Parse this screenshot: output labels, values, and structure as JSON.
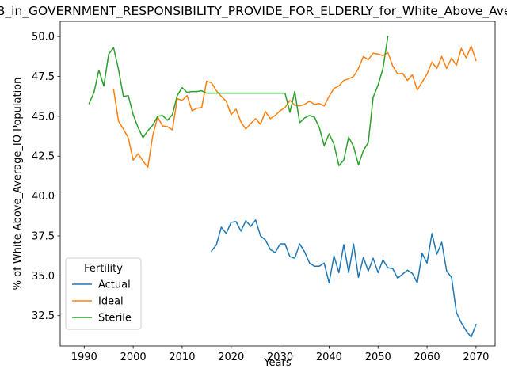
{
  "chart_data": {
    "type": "line",
    "title": "B_in_GOVERNMENT_RESPONSIBILITY_PROVIDE_FOR_ELDERLY_for_White_Above_Average_IQ",
    "xlabel": "Years",
    "ylabel": "% of White Above_Average_IQ Population",
    "xlim": [
      1985.1,
      2073.9
    ],
    "ylim": [
      30.6,
      50.95
    ],
    "xticks": [
      1990,
      2000,
      2010,
      2020,
      2030,
      2040,
      2050,
      2060,
      2070
    ],
    "yticks": [
      32.5,
      35.0,
      37.5,
      40.0,
      42.5,
      45.0,
      47.5,
      50.0
    ],
    "ytick_labels": [
      "32.5",
      "35.0",
      "37.5",
      "40.0",
      "42.5",
      "45.0",
      "47.5",
      "50.0"
    ],
    "grid": false,
    "legend": {
      "title": "Fertility",
      "position": "lower-left"
    },
    "series": [
      {
        "name": "Actual",
        "color": "#1f77b4",
        "x": [
          2016,
          2017,
          2018,
          2019,
          2020,
          2021,
          2022,
          2023,
          2024,
          2025,
          2026,
          2027,
          2028,
          2029,
          2030,
          2031,
          2032,
          2033,
          2034,
          2035,
          2036,
          2037,
          2038,
          2039,
          2040,
          2041,
          2042,
          2043,
          2044,
          2045,
          2046,
          2047,
          2048,
          2049,
          2050,
          2051,
          2052,
          2053,
          2054,
          2055,
          2056,
          2057,
          2058,
          2059,
          2060,
          2061,
          2062,
          2063,
          2064,
          2065,
          2066,
          2067,
          2068,
          2069,
          2070
        ],
        "y": [
          36.55,
          36.95,
          38.05,
          37.65,
          38.35,
          38.4,
          37.8,
          38.45,
          38.1,
          38.5,
          37.5,
          37.25,
          36.65,
          36.45,
          37.0,
          37.0,
          36.2,
          36.1,
          37.0,
          36.5,
          35.8,
          35.6,
          35.6,
          35.8,
          34.55,
          36.25,
          35.2,
          36.95,
          35.2,
          37.0,
          34.9,
          36.15,
          35.3,
          36.1,
          35.2,
          36.0,
          35.5,
          35.45,
          34.85,
          35.1,
          35.35,
          35.15,
          34.55,
          36.4,
          35.8,
          37.65,
          36.35,
          37.1,
          35.3,
          34.9,
          32.7,
          32.05,
          31.55,
          31.15,
          31.95
        ]
      },
      {
        "name": "Ideal",
        "color": "#ff7f0e",
        "x": [
          1996,
          1997,
          1998,
          1999,
          2000,
          2001,
          2002,
          2003,
          2004,
          2005,
          2006,
          2007,
          2008,
          2009,
          2010,
          2011,
          2012,
          2013,
          2014,
          2015,
          2016,
          2017,
          2018,
          2019,
          2020,
          2021,
          2022,
          2023,
          2024,
          2025,
          2026,
          2027,
          2028,
          2029,
          2030,
          2031,
          2032,
          2033,
          2034,
          2035,
          2036,
          2037,
          2038,
          2039,
          2040,
          2041,
          2042,
          2043,
          2044,
          2045,
          2046,
          2047,
          2048,
          2049,
          2050,
          2051,
          2052,
          2053,
          2054,
          2055,
          2056,
          2057,
          2058,
          2059,
          2060,
          2061,
          2062,
          2063,
          2064,
          2065,
          2066,
          2067,
          2068,
          2069,
          2070
        ],
        "y": [
          46.7,
          44.7,
          44.2,
          43.65,
          42.25,
          42.65,
          42.2,
          41.8,
          43.8,
          44.95,
          44.4,
          44.35,
          44.15,
          46.1,
          46.0,
          46.3,
          45.35,
          45.5,
          45.55,
          47.2,
          47.1,
          46.6,
          46.25,
          45.95,
          45.1,
          45.45,
          44.65,
          44.2,
          44.55,
          44.85,
          44.5,
          45.3,
          44.85,
          45.05,
          45.35,
          45.55,
          46.0,
          45.7,
          45.65,
          45.75,
          45.95,
          45.75,
          45.8,
          45.65,
          46.25,
          46.75,
          46.9,
          47.25,
          47.35,
          47.5,
          48.0,
          48.75,
          48.55,
          48.95,
          48.9,
          48.8,
          49.0,
          48.15,
          47.65,
          47.7,
          47.25,
          47.6,
          46.65,
          47.15,
          47.65,
          48.4,
          48.0,
          48.75,
          48.0,
          48.65,
          48.2,
          49.25,
          48.65,
          49.4,
          48.5
        ]
      },
      {
        "name": "Sterile",
        "color": "#2ca02c",
        "x": [
          1991,
          1992,
          1993,
          1994,
          1995,
          1996,
          1997,
          1998,
          1999,
          2000,
          2001,
          2002,
          2003,
          2004,
          2005,
          2006,
          2007,
          2008,
          2009,
          2010,
          2011,
          2012,
          2013,
          2014,
          2015,
          2016,
          2017,
          2018,
          2019,
          2020,
          2021,
          2022,
          2023,
          2024,
          2025,
          2026,
          2027,
          2028,
          2029,
          2030,
          2031,
          2032,
          2033,
          2034,
          2035,
          2036,
          2037,
          2038,
          2039,
          2040,
          2041,
          2042,
          2043,
          2044,
          2045,
          2046,
          2047,
          2048,
          2049,
          2050,
          2051,
          2052
        ],
        "y": [
          45.8,
          46.5,
          47.9,
          46.9,
          48.9,
          49.3,
          47.95,
          46.25,
          46.3,
          45.1,
          44.3,
          43.65,
          44.1,
          44.45,
          45.0,
          45.05,
          44.75,
          45.1,
          46.3,
          46.8,
          46.5,
          46.55,
          46.55,
          46.6,
          46.45,
          46.45,
          46.45,
          46.45,
          46.45,
          46.45,
          46.45,
          46.45,
          46.45,
          46.45,
          46.45,
          46.45,
          46.45,
          46.45,
          46.45,
          46.45,
          46.45,
          45.25,
          46.55,
          44.6,
          44.9,
          45.05,
          44.95,
          44.3,
          43.15,
          43.9,
          43.25,
          41.9,
          42.25,
          43.7,
          43.1,
          41.95,
          42.85,
          43.35,
          46.2,
          46.95,
          48.0,
          50.0
        ]
      }
    ]
  }
}
